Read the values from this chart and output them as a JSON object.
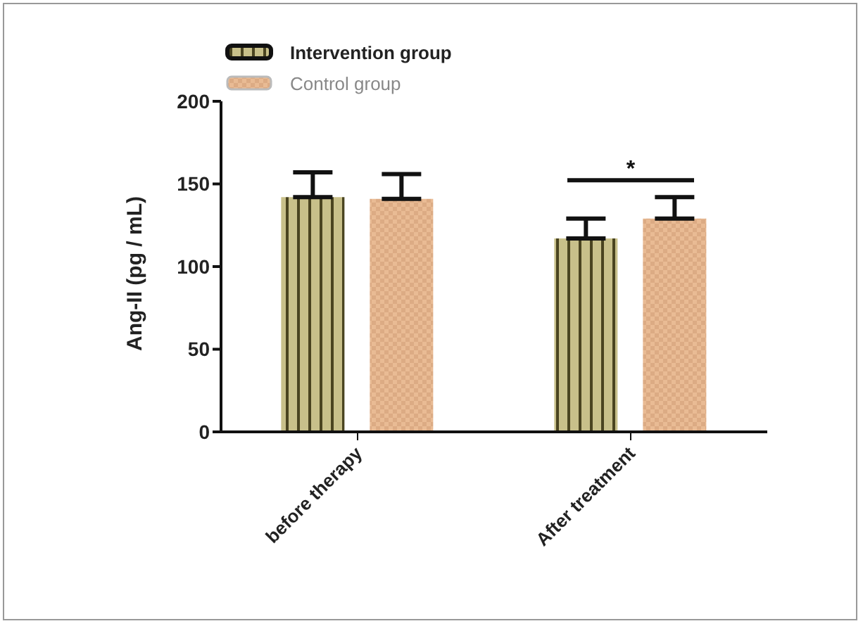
{
  "chart_data": {
    "type": "bar",
    "ylabel": "Ang-II (pg / mL)",
    "categories": [
      "before therapy",
      "After treatment"
    ],
    "series": [
      {
        "name": "Intervention group",
        "color": "#c8c08a",
        "values": [
          142,
          117
        ],
        "errors": [
          [
            142,
            157
          ],
          [
            117,
            129
          ]
        ]
      },
      {
        "name": "Control group",
        "color": "#e9bb94",
        "values": [
          141,
          129
        ],
        "errors": [
          [
            141,
            156
          ],
          [
            129,
            142
          ]
        ]
      }
    ],
    "ylim": [
      0,
      200
    ],
    "yticks": [
      0,
      50,
      100,
      150,
      200
    ],
    "grid": false,
    "legend": "top left",
    "annotations": [
      "*"
    ]
  }
}
